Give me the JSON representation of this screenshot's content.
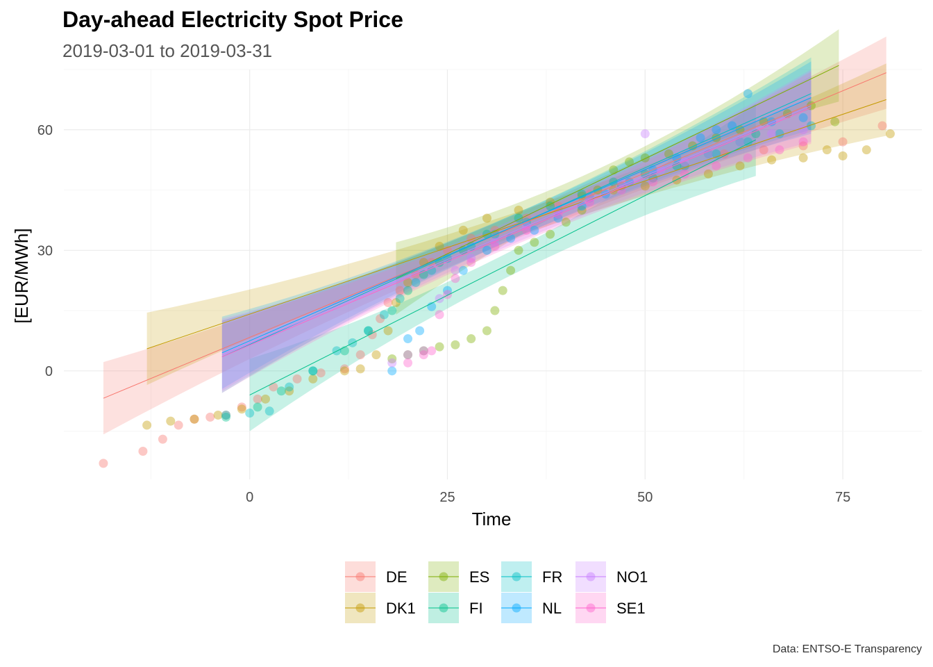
{
  "chart_data": {
    "type": "scatter",
    "title": "Day-ahead Electricity Spot Price",
    "subtitle": "2019-03-01 to 2019-03-31",
    "xlabel": "Time",
    "ylabel": "[EUR/MWh]",
    "caption": "Data: ENTSO-E Transparency",
    "xlim": [
      -23.5,
      85
    ],
    "ylim": [
      -27,
      75
    ],
    "x_ticks": [
      0,
      25,
      50,
      75
    ],
    "y_ticks": [
      0,
      30,
      60
    ],
    "grid": true,
    "legend_position": "bottom",
    "colors": {
      "DE": "#F8766D",
      "DK1": "#C49A00",
      "ES": "#7CAE00",
      "FI": "#00C08B",
      "FR": "#00BFC4",
      "NL": "#00A9FF",
      "NO1": "#C77CFF",
      "SE1": "#FF61CC"
    },
    "series": [
      {
        "name": "DE",
        "fit": {
          "x": [
            -18.5,
            80.5
          ],
          "y": [
            -6.8,
            74.2
          ]
        },
        "points": [
          [
            -18.5,
            -23
          ],
          [
            -13.5,
            -20
          ],
          [
            -11,
            -17
          ],
          [
            -9,
            -13.5
          ],
          [
            -7,
            -12
          ],
          [
            -5,
            -11.5
          ],
          [
            -3,
            -11
          ],
          [
            -1,
            -9
          ],
          [
            1,
            -7
          ],
          [
            3,
            -4
          ],
          [
            6,
            -2
          ],
          [
            9,
            -0.5
          ],
          [
            12,
            0.5
          ],
          [
            14,
            4
          ],
          [
            15.5,
            9
          ],
          [
            16.5,
            13
          ],
          [
            17.5,
            17
          ],
          [
            19,
            20
          ],
          [
            21,
            24
          ],
          [
            23,
            27
          ],
          [
            25,
            30
          ],
          [
            28,
            33
          ],
          [
            31,
            35
          ],
          [
            35,
            38
          ],
          [
            39,
            41
          ],
          [
            43,
            44
          ],
          [
            47,
            46
          ],
          [
            51,
            48
          ],
          [
            55,
            51
          ],
          [
            60,
            54
          ],
          [
            65,
            55
          ],
          [
            70,
            56
          ],
          [
            75,
            57
          ],
          [
            80,
            61
          ]
        ]
      },
      {
        "name": "DK1",
        "fit": {
          "x": [
            -13,
            80.5
          ],
          "y": [
            5.5,
            67.5
          ]
        },
        "points": [
          [
            -13,
            -13.5
          ],
          [
            -10,
            -12.5
          ],
          [
            -7,
            -12
          ],
          [
            -4,
            -11
          ],
          [
            -1,
            -9.5
          ],
          [
            2,
            -7
          ],
          [
            5,
            -5
          ],
          [
            8,
            -2
          ],
          [
            12,
            0
          ],
          [
            14,
            0.5
          ],
          [
            16,
            4
          ],
          [
            17.5,
            10
          ],
          [
            18.5,
            17
          ],
          [
            20,
            22
          ],
          [
            22,
            27
          ],
          [
            24,
            31
          ],
          [
            27,
            35
          ],
          [
            30,
            38
          ],
          [
            34,
            40
          ],
          [
            38,
            42
          ],
          [
            42,
            43.5
          ],
          [
            46,
            45
          ],
          [
            50,
            46
          ],
          [
            54,
            47.5
          ],
          [
            58,
            49
          ],
          [
            62,
            51
          ],
          [
            66,
            52.5
          ],
          [
            70,
            53
          ],
          [
            73,
            55
          ],
          [
            75,
            53.5
          ],
          [
            78,
            55
          ],
          [
            81,
            59
          ]
        ]
      },
      {
        "name": "ES",
        "fit": {
          "x": [
            18.5,
            74.5
          ],
          "y": [
            23.0,
            76.0
          ]
        },
        "points": [
          [
            18,
            3
          ],
          [
            20,
            4
          ],
          [
            22,
            5
          ],
          [
            24,
            6
          ],
          [
            26,
            6.5
          ],
          [
            28,
            8
          ],
          [
            30,
            10
          ],
          [
            31,
            15
          ],
          [
            32,
            20
          ],
          [
            33,
            25
          ],
          [
            34,
            30
          ],
          [
            36,
            32
          ],
          [
            38,
            34
          ],
          [
            40,
            37
          ],
          [
            42,
            40
          ],
          [
            44,
            45
          ],
          [
            46,
            50
          ],
          [
            48,
            52
          ],
          [
            50,
            53
          ],
          [
            53,
            54
          ],
          [
            56,
            56
          ],
          [
            59,
            58
          ],
          [
            62,
            60
          ],
          [
            65,
            62
          ],
          [
            68,
            64
          ],
          [
            71,
            66
          ],
          [
            74,
            62
          ]
        ]
      },
      {
        "name": "FI",
        "fit": {
          "x": [
            0,
            64
          ],
          "y": [
            -6.0,
            57.5
          ]
        },
        "points": [
          [
            -3,
            -11.5
          ],
          [
            1,
            -9
          ],
          [
            4,
            -5
          ],
          [
            8,
            0
          ],
          [
            12,
            5
          ],
          [
            15,
            10
          ],
          [
            18,
            15
          ],
          [
            20,
            20
          ],
          [
            22,
            24
          ],
          [
            24,
            27
          ],
          [
            27,
            30
          ],
          [
            30,
            34
          ],
          [
            34,
            38
          ],
          [
            38,
            41
          ],
          [
            42,
            44
          ],
          [
            46,
            47
          ],
          [
            50,
            49
          ],
          [
            54,
            51
          ],
          [
            58,
            54
          ],
          [
            62,
            57
          ],
          [
            64,
            59
          ]
        ]
      },
      {
        "name": "FR",
        "fit": {
          "x": [
            -3.5,
            71
          ],
          "y": [
            3.5,
            69.0
          ]
        },
        "points": [
          [
            -3,
            -11
          ],
          [
            0,
            -10.5
          ],
          [
            2.5,
            -10
          ],
          [
            5,
            -4
          ],
          [
            8,
            0
          ],
          [
            11,
            5
          ],
          [
            13,
            7
          ],
          [
            15,
            10
          ],
          [
            17,
            14
          ],
          [
            19,
            18
          ],
          [
            21,
            22
          ],
          [
            23,
            25
          ],
          [
            25,
            28
          ],
          [
            28,
            31
          ],
          [
            31,
            34
          ],
          [
            35,
            37
          ],
          [
            39,
            40
          ],
          [
            43,
            43
          ],
          [
            47,
            46
          ],
          [
            51,
            48
          ],
          [
            55,
            51
          ],
          [
            59,
            54
          ],
          [
            63,
            57
          ],
          [
            67,
            59
          ],
          [
            71,
            61
          ]
        ]
      },
      {
        "name": "NL",
        "fit": {
          "x": [
            -3.5,
            71
          ],
          "y": [
            4.5,
            68.0
          ]
        },
        "points": [
          [
            18,
            0
          ],
          [
            20,
            8
          ],
          [
            21.5,
            10
          ],
          [
            23,
            16
          ],
          [
            25,
            20
          ],
          [
            27,
            25
          ],
          [
            30,
            30
          ],
          [
            33,
            33
          ],
          [
            36,
            35
          ],
          [
            39,
            38
          ],
          [
            42,
            41
          ],
          [
            45,
            44
          ],
          [
            48,
            47
          ],
          [
            51,
            50
          ],
          [
            54,
            53
          ],
          [
            57,
            58
          ],
          [
            59,
            60
          ],
          [
            61,
            61
          ],
          [
            63,
            69
          ],
          [
            66,
            62
          ],
          [
            70,
            63
          ]
        ]
      },
      {
        "name": "NO1",
        "fit": {
          "x": [
            -3.5,
            71
          ],
          "y": [
            4.0,
            66.0
          ]
        },
        "points": [
          [
            18,
            2
          ],
          [
            20,
            4
          ],
          [
            22,
            5
          ],
          [
            24,
            18
          ],
          [
            26,
            25
          ],
          [
            28,
            28
          ],
          [
            31,
            32
          ],
          [
            35,
            36
          ],
          [
            39,
            40
          ],
          [
            43,
            43
          ],
          [
            47,
            47
          ],
          [
            50,
            59
          ],
          [
            52,
            50
          ],
          [
            55,
            52
          ],
          [
            58,
            54
          ],
          [
            62,
            57
          ],
          [
            66,
            59
          ],
          [
            70,
            60
          ]
        ]
      },
      {
        "name": "SE1",
        "fit": {
          "x": [
            -3.5,
            71
          ],
          "y": [
            3.5,
            65.5
          ]
        },
        "points": [
          [
            20,
            2
          ],
          [
            22,
            4
          ],
          [
            23,
            5
          ],
          [
            24,
            14
          ],
          [
            25,
            19
          ],
          [
            26,
            23
          ],
          [
            28,
            27
          ],
          [
            31,
            31
          ],
          [
            35,
            35
          ],
          [
            39,
            39
          ],
          [
            43,
            42
          ],
          [
            47,
            45
          ],
          [
            51,
            47
          ],
          [
            55,
            49
          ],
          [
            59,
            51
          ],
          [
            63,
            53
          ],
          [
            67,
            55
          ],
          [
            70,
            57
          ]
        ]
      }
    ]
  }
}
